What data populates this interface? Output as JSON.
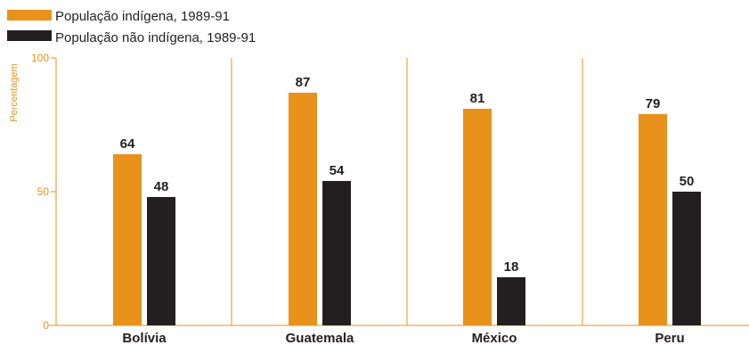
{
  "chart_data": {
    "type": "bar",
    "categories": [
      "Bolívia",
      "Guatemala",
      "México",
      "Peru"
    ],
    "series": [
      {
        "name": "População indígena, 1989-91",
        "values": [
          64,
          87,
          81,
          79
        ],
        "color": "#e8921c"
      },
      {
        "name": "População não indígena, 1989-91",
        "values": [
          48,
          54,
          18,
          50
        ],
        "color": "#231f20"
      }
    ],
    "ylabel": "Percentagem",
    "ylim": [
      0,
      100
    ],
    "yticks": [
      0,
      50,
      100
    ],
    "legend": "top-left",
    "grid": false,
    "axis_color": "#e8921c"
  }
}
